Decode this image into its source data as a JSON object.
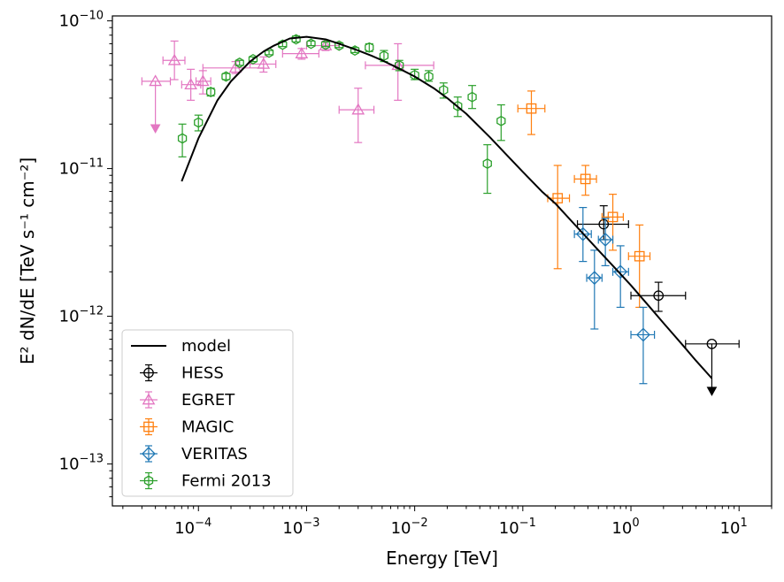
{
  "chart_data": {
    "type": "scatter",
    "title": "",
    "xlabel": "Energy [TeV]",
    "ylabel": "E² dN/dE [TeV s⁻¹ cm⁻²]",
    "xscale": "log",
    "yscale": "log",
    "xlim": [
      1.6e-05,
      20
    ],
    "ylim": [
      5.2e-14,
      1.08e-10
    ],
    "grid": false,
    "legend_position": "lower-left",
    "x_ticks": [
      {
        "value": 0.0001,
        "base": "10",
        "exp": "−4"
      },
      {
        "value": 0.001,
        "base": "10",
        "exp": "−3"
      },
      {
        "value": 0.01,
        "base": "10",
        "exp": "−2"
      },
      {
        "value": 0.1,
        "base": "10",
        "exp": "−1"
      },
      {
        "value": 1,
        "base": "10",
        "exp": "0"
      },
      {
        "value": 10,
        "base": "10",
        "exp": "1"
      }
    ],
    "y_ticks": [
      {
        "value": 1e-13,
        "base": "10",
        "exp": "−13"
      },
      {
        "value": 1e-12,
        "base": "10",
        "exp": "−12"
      },
      {
        "value": 1e-11,
        "base": "10",
        "exp": "−11"
      },
      {
        "value": 1e-10,
        "base": "10",
        "exp": "−10"
      }
    ],
    "model": {
      "name": "model",
      "color": "#000000",
      "x": [
        7e-05,
        0.0001,
        0.00015,
        0.0002,
        0.0003,
        0.0004,
        0.0005,
        0.0007,
        0.001,
        0.0015,
        0.002,
        0.003,
        0.004,
        0.005,
        0.007,
        0.01,
        0.015,
        0.02,
        0.03,
        0.05,
        0.07,
        0.1,
        0.15,
        0.2,
        0.3,
        0.5,
        0.7,
        1,
        1.5,
        2,
        3,
        4,
        5.6
      ],
      "y": [
        8.2e-12,
        1.6e-11,
        2.9e-11,
        3.9e-11,
        5.3e-11,
        6.2e-11,
        6.8e-11,
        7.6e-11,
        7.8e-11,
        7.5e-11,
        7e-11,
        6.3e-11,
        5.8e-11,
        5.4e-11,
        4.8e-11,
        4.2e-11,
        3.5e-11,
        3e-11,
        2.35e-11,
        1.62e-11,
        1.25e-11,
        9.5e-12,
        7e-12,
        5.8e-12,
        4.2e-12,
        2.8e-12,
        2.15e-12,
        1.62e-12,
        1.15e-12,
        9e-13,
        6.4e-13,
        5e-13,
        3.8e-13
      ]
    },
    "series": [
      {
        "name": "HESS",
        "marker": "circle",
        "color": "#000000",
        "points": [
          {
            "x": 0.56,
            "y": 4.2e-12,
            "xlo": 0.32,
            "xhi": 0.95,
            "ylo": 3.3e-12,
            "yhi": 5.6e-12
          },
          {
            "x": 1.8,
            "y": 1.38e-12,
            "xlo": 1.0,
            "xhi": 3.2,
            "ylo": 1.08e-12,
            "yhi": 1.7e-12
          },
          {
            "x": 5.6,
            "y": 6.5e-13,
            "xlo": 3.2,
            "xhi": 10.0,
            "ylo": 6.5e-13,
            "yhi": 6.5e-13,
            "upper_limit_to": 3e-13
          }
        ]
      },
      {
        "name": "EGRET",
        "marker": "triangle",
        "color": "#e377c2",
        "points": [
          {
            "x": 4e-05,
            "y": 3.9e-11,
            "xlo": 3e-05,
            "xhi": 5.5e-05,
            "ylo": 3.9e-11,
            "yhi": 3.9e-11,
            "upper_limit_to": 1.8e-11
          },
          {
            "x": 6e-05,
            "y": 5.4e-11,
            "xlo": 4.7e-05,
            "xhi": 7.5e-05,
            "ylo": 4e-11,
            "yhi": 7.3e-11
          },
          {
            "x": 8.5e-05,
            "y": 3.7e-11,
            "xlo": 7e-05,
            "xhi": 0.000105,
            "ylo": 2.9e-11,
            "yhi": 4.7e-11
          },
          {
            "x": 0.00011,
            "y": 3.9e-11,
            "xlo": 9.5e-05,
            "xhi": 0.00013,
            "ylo": 3.2e-11,
            "yhi": 4.6e-11
          },
          {
            "x": 0.00022,
            "y": 4.8e-11,
            "xlo": 0.00011,
            "xhi": 0.0004,
            "ylo": 4.4e-11,
            "yhi": 5.3e-11
          },
          {
            "x": 0.0004,
            "y": 5.1e-11,
            "xlo": 0.0003,
            "xhi": 0.00052,
            "ylo": 4.5e-11,
            "yhi": 5.7e-11
          },
          {
            "x": 0.0009,
            "y": 6e-11,
            "xlo": 0.0006,
            "xhi": 0.0013,
            "ylo": 5.5e-11,
            "yhi": 6.5e-11
          },
          {
            "x": 0.0015,
            "y": 6.8e-11,
            "xlo": 0.001,
            "xhi": 0.002,
            "ylo": 6.3e-11,
            "yhi": 7.3e-11
          },
          {
            "x": 0.003,
            "y": 2.5e-11,
            "xlo": 0.002,
            "xhi": 0.0042,
            "ylo": 1.5e-11,
            "yhi": 3.5e-11
          },
          {
            "x": 0.007,
            "y": 5e-11,
            "xlo": 0.0035,
            "xhi": 0.015,
            "ylo": 2.9e-11,
            "yhi": 7e-11
          }
        ]
      },
      {
        "name": "MAGIC",
        "marker": "square",
        "color": "#ff7f0e",
        "points": [
          {
            "x": 0.12,
            "y": 2.55e-11,
            "xlo": 0.09,
            "xhi": 0.16,
            "ylo": 1.7e-11,
            "yhi": 3.35e-11
          },
          {
            "x": 0.21,
            "y": 6.3e-12,
            "xlo": 0.17,
            "xhi": 0.27,
            "ylo": 2.1e-12,
            "yhi": 1.05e-11
          },
          {
            "x": 0.38,
            "y": 8.5e-12,
            "xlo": 0.3,
            "xhi": 0.48,
            "ylo": 6.6e-12,
            "yhi": 1.05e-11
          },
          {
            "x": 0.68,
            "y": 4.7e-12,
            "xlo": 0.54,
            "xhi": 0.85,
            "ylo": 2.8e-12,
            "yhi": 6.7e-12
          },
          {
            "x": 1.2,
            "y": 2.55e-12,
            "xlo": 0.95,
            "xhi": 1.5,
            "ylo": 1.15e-12,
            "yhi": 4.15e-12
          }
        ]
      },
      {
        "name": "VERITAS",
        "marker": "diamond",
        "color": "#1f77b4",
        "points": [
          {
            "x": 0.36,
            "y": 3.6e-12,
            "xlo": 0.3,
            "xhi": 0.43,
            "ylo": 2.35e-12,
            "yhi": 5.45e-12
          },
          {
            "x": 0.46,
            "y": 1.82e-12,
            "xlo": 0.39,
            "xhi": 0.54,
            "ylo": 8.2e-13,
            "yhi": 2.8e-12
          },
          {
            "x": 0.58,
            "y": 3.3e-12,
            "xlo": 0.5,
            "xhi": 0.68,
            "ylo": 2.2e-12,
            "yhi": 4.6e-12
          },
          {
            "x": 0.8,
            "y": 2e-12,
            "xlo": 0.68,
            "xhi": 0.95,
            "ylo": 1.15e-12,
            "yhi": 3e-12
          },
          {
            "x": 1.3,
            "y": 7.5e-13,
            "xlo": 1.0,
            "xhi": 1.65,
            "ylo": 3.5e-13,
            "yhi": 1.15e-12
          }
        ]
      },
      {
        "name": "Fermi 2013",
        "marker": "hexagon",
        "color": "#2ca02c",
        "points": [
          {
            "x": 7.1e-05,
            "y": 1.6e-11,
            "ylo": 1.2e-11,
            "yhi": 2e-11
          },
          {
            "x": 0.0001,
            "y": 2.05e-11,
            "ylo": 1.8e-11,
            "yhi": 2.3e-11
          },
          {
            "x": 0.00013,
            "y": 3.3e-11,
            "ylo": 3.1e-11,
            "yhi": 3.5e-11
          },
          {
            "x": 0.00018,
            "y": 4.2e-11,
            "ylo": 4e-11,
            "yhi": 4.4e-11
          },
          {
            "x": 0.00024,
            "y": 5.2e-11,
            "ylo": 5e-11,
            "yhi": 5.4e-11
          },
          {
            "x": 0.00032,
            "y": 5.5e-11,
            "ylo": 5.3e-11,
            "yhi": 5.7e-11
          },
          {
            "x": 0.00045,
            "y": 6.1e-11,
            "ylo": 5.9e-11,
            "yhi": 6.3e-11
          },
          {
            "x": 0.0006,
            "y": 6.9e-11,
            "ylo": 6.7e-11,
            "yhi": 7.2e-11
          },
          {
            "x": 0.0008,
            "y": 7.5e-11,
            "ylo": 7.2e-11,
            "yhi": 7.9e-11
          },
          {
            "x": 0.0011,
            "y": 7e-11,
            "ylo": 6.8e-11,
            "yhi": 7.3e-11
          },
          {
            "x": 0.0015,
            "y": 6.9e-11,
            "ylo": 6.7e-11,
            "yhi": 7.2e-11
          },
          {
            "x": 0.002,
            "y": 6.8e-11,
            "ylo": 6.6e-11,
            "yhi": 7.1e-11
          },
          {
            "x": 0.0028,
            "y": 6.3e-11,
            "ylo": 6.1e-11,
            "yhi": 6.6e-11
          },
          {
            "x": 0.0038,
            "y": 6.6e-11,
            "ylo": 6.2e-11,
            "yhi": 7e-11
          },
          {
            "x": 0.0052,
            "y": 5.8e-11,
            "ylo": 5.3e-11,
            "yhi": 6.3e-11
          },
          {
            "x": 0.0072,
            "y": 5e-11,
            "ylo": 4.6e-11,
            "yhi": 5.4e-11
          },
          {
            "x": 0.01,
            "y": 4.3e-11,
            "ylo": 4e-11,
            "yhi": 4.7e-11
          },
          {
            "x": 0.0135,
            "y": 4.2e-11,
            "ylo": 3.9e-11,
            "yhi": 4.6e-11
          },
          {
            "x": 0.0185,
            "y": 3.4e-11,
            "ylo": 3e-11,
            "yhi": 3.8e-11
          },
          {
            "x": 0.025,
            "y": 2.65e-11,
            "ylo": 2.25e-11,
            "yhi": 3.05e-11
          },
          {
            "x": 0.034,
            "y": 3.05e-11,
            "ylo": 2.55e-11,
            "yhi": 3.65e-11
          },
          {
            "x": 0.047,
            "y": 1.08e-11,
            "ylo": 6.8e-12,
            "yhi": 1.45e-11
          },
          {
            "x": 0.063,
            "y": 2.1e-11,
            "ylo": 1.55e-11,
            "yhi": 2.7e-11
          }
        ]
      }
    ]
  }
}
